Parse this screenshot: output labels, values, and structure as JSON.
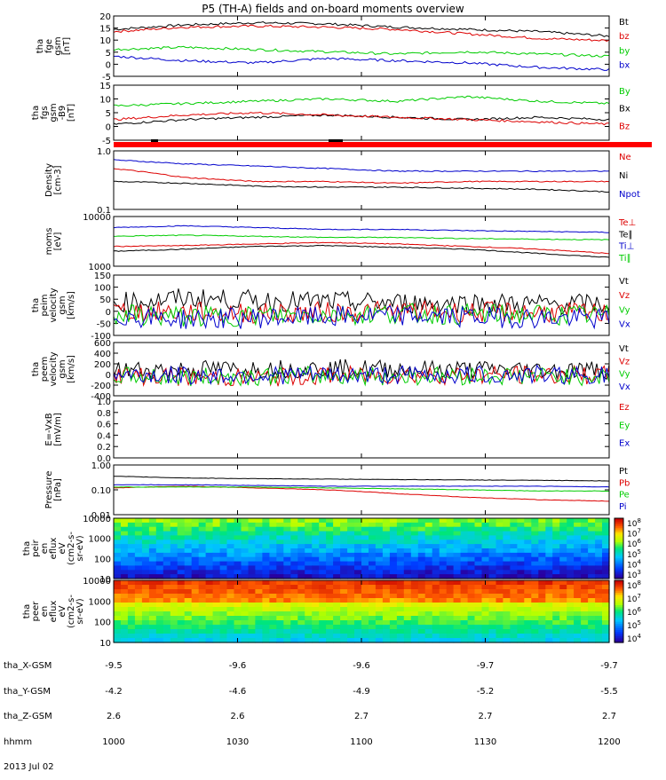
{
  "title": "P5 (TH-A) fields and on-board moments overview",
  "colors": {
    "black": "#000000",
    "red": "#dd0000",
    "green": "#00cc00",
    "blue": "#0000cc"
  },
  "chart_data": [
    {
      "type": "line",
      "ylabel": [
        "tha",
        "fge",
        "gsm",
        "[nT]"
      ],
      "yticks": [
        "20",
        "15",
        "10",
        "5",
        "0",
        "-5"
      ],
      "ylim": [
        -6,
        21
      ],
      "legend": [
        {
          "label": "Bt",
          "color": "black"
        },
        {
          "label": "bz",
          "color": "red"
        },
        {
          "label": "by",
          "color": "green"
        },
        {
          "label": "bx",
          "color": "blue"
        }
      ],
      "series": [
        {
          "name": "Bt",
          "values": [
            15,
            17,
            18,
            17.5,
            16,
            15,
            14,
            12
          ]
        },
        {
          "name": "bz",
          "values": [
            14,
            16,
            16.5,
            16,
            15,
            13,
            11,
            10
          ]
        },
        {
          "name": "by",
          "values": [
            6,
            7,
            6,
            5,
            4,
            5,
            4,
            3
          ]
        },
        {
          "name": "bx",
          "values": [
            3,
            1,
            0,
            2,
            1,
            0,
            -2,
            -3
          ]
        }
      ]
    },
    {
      "type": "line",
      "ylabel": [
        "tha",
        "fgs",
        "gsm",
        "-B9",
        "[nT]"
      ],
      "yticks": [
        "15",
        "10",
        "5",
        "0",
        "-5"
      ],
      "ylim": [
        -7,
        17
      ],
      "legend": [
        {
          "label": "By",
          "color": "green"
        },
        {
          "label": "Bx",
          "color": "black"
        },
        {
          "label": "Bz",
          "color": "red"
        }
      ],
      "series": [
        {
          "name": "By",
          "values": [
            8,
            9,
            10,
            11,
            10,
            12,
            10,
            9
          ]
        },
        {
          "name": "Bx",
          "values": [
            0,
            2,
            3,
            4,
            3,
            2,
            3,
            2
          ]
        },
        {
          "name": "Bz",
          "values": [
            2,
            4,
            5,
            4,
            3,
            2,
            1,
            0
          ]
        }
      ]
    },
    {
      "type": "line",
      "ylabel": [
        "Density",
        "[cm-3]"
      ],
      "yticks": [
        "1.0",
        "0.1"
      ],
      "ylim": [
        0.1,
        1.0
      ],
      "log": true,
      "legend": [
        {
          "label": "Ne",
          "color": "red"
        },
        {
          "label": "Ni",
          "color": "black"
        },
        {
          "label": "Npot",
          "color": "blue"
        }
      ],
      "series": [
        {
          "name": "Ne",
          "values": [
            0.5,
            0.35,
            0.3,
            0.3,
            0.28,
            0.3,
            0.3,
            0.3
          ]
        },
        {
          "name": "Ni",
          "values": [
            0.3,
            0.28,
            0.25,
            0.24,
            0.24,
            0.23,
            0.22,
            0.2
          ]
        },
        {
          "name": "Npot",
          "values": [
            0.7,
            0.6,
            0.55,
            0.5,
            0.45,
            0.45,
            0.45,
            0.45
          ]
        }
      ]
    },
    {
      "type": "line",
      "ylabel": [
        "moms",
        "[eV]"
      ],
      "yticks": [
        "10000",
        "1000"
      ],
      "ylim": [
        1000,
        10000
      ],
      "log": true,
      "legend": [
        {
          "label": "Te⊥",
          "color": "red"
        },
        {
          "label": "Te∥",
          "color": "black"
        },
        {
          "label": "Ti⊥",
          "color": "blue"
        },
        {
          "label": "Ti∥",
          "color": "green"
        }
      ],
      "series": [
        {
          "name": "Te⊥",
          "values": [
            2500,
            2600,
            2800,
            3000,
            2800,
            2500,
            2200,
            1800
          ]
        },
        {
          "name": "Te∥",
          "values": [
            2000,
            2200,
            2500,
            2600,
            2400,
            2200,
            1800,
            1500
          ]
        },
        {
          "name": "Ti⊥",
          "values": [
            6000,
            6500,
            6000,
            5500,
            5500,
            5200,
            5000,
            4800
          ]
        },
        {
          "name": "Ti∥",
          "values": [
            4000,
            4200,
            4000,
            3800,
            3800,
            3600,
            3500,
            3400
          ]
        }
      ]
    },
    {
      "type": "line",
      "ylabel": [
        "tha",
        "peim",
        "velocity",
        "gsm",
        "[km/s]"
      ],
      "yticks": [
        "150",
        "100",
        "50",
        "0",
        "-50",
        "-100"
      ],
      "ylim": [
        -100,
        160
      ],
      "legend": [
        {
          "label": "Vt",
          "color": "black"
        },
        {
          "label": "Vz",
          "color": "red"
        },
        {
          "label": "Vy",
          "color": "green"
        },
        {
          "label": "Vx",
          "color": "blue"
        }
      ],
      "series": [
        {
          "name": "Vt",
          "values": [
            40,
            60,
            50,
            45,
            40,
            40,
            35,
            35
          ]
        },
        {
          "name": "Vz",
          "values": [
            5,
            0,
            -5,
            0,
            5,
            0,
            0,
            -5
          ]
        },
        {
          "name": "Vy",
          "values": [
            -10,
            -20,
            -15,
            -10,
            -5,
            -10,
            -10,
            -15
          ]
        },
        {
          "name": "Vx",
          "values": [
            -15,
            -30,
            -25,
            -20,
            -15,
            -20,
            -25,
            -30
          ]
        }
      ]
    },
    {
      "type": "line",
      "ylabel": [
        "tha",
        "peem",
        "velocity",
        "gsm",
        "[km/s]"
      ],
      "yticks": [
        "600",
        "400",
        "200",
        "0",
        "-200",
        "-400"
      ],
      "ylim": [
        -420,
        610
      ],
      "legend": [
        {
          "label": "Vt",
          "color": "black"
        },
        {
          "label": "Vz",
          "color": "red"
        },
        {
          "label": "Vy",
          "color": "green"
        },
        {
          "label": "Vx",
          "color": "blue"
        }
      ],
      "series": [
        {
          "name": "Vt",
          "values": [
            70,
            90,
            100,
            110,
            100,
            90,
            85,
            80
          ]
        },
        {
          "name": "Vz",
          "values": [
            -20,
            -60,
            -80,
            -30,
            -20,
            -20,
            -20,
            -20
          ]
        },
        {
          "name": "Vy",
          "values": [
            -30,
            -70,
            -40,
            -30,
            -40,
            -30,
            -40,
            -40
          ]
        },
        {
          "name": "Vx",
          "values": [
            -10,
            -30,
            -20,
            -20,
            -20,
            -20,
            -10,
            -20
          ]
        }
      ]
    },
    {
      "type": "line",
      "ylabel": [
        "E=-VxB",
        "[mV/m]"
      ],
      "yticks": [
        "1.0",
        "0.8",
        "0.6",
        "0.4",
        "0.2",
        "0.0"
      ],
      "ylim": [
        0,
        1
      ],
      "legend": [
        {
          "label": "Ez",
          "color": "red"
        },
        {
          "label": "Ey",
          "color": "green"
        },
        {
          "label": "Ex",
          "color": "blue"
        }
      ],
      "series": []
    },
    {
      "type": "line",
      "ylabel": [
        "Pressure",
        "[nPa]"
      ],
      "yticks": [
        "1.00",
        "0.10",
        "0.01"
      ],
      "ylim": [
        0.01,
        1.0
      ],
      "log": true,
      "legend": [
        {
          "label": "Pt",
          "color": "black"
        },
        {
          "label": "Pb",
          "color": "red"
        },
        {
          "label": "Pe",
          "color": "green"
        },
        {
          "label": "Pi",
          "color": "blue"
        }
      ],
      "series": [
        {
          "name": "Pt",
          "values": [
            0.35,
            0.3,
            0.28,
            0.27,
            0.26,
            0.25,
            0.24,
            0.23
          ]
        },
        {
          "name": "Pb",
          "values": [
            0.12,
            0.14,
            0.12,
            0.1,
            0.07,
            0.05,
            0.04,
            0.035
          ]
        },
        {
          "name": "Pe",
          "values": [
            0.13,
            0.13,
            0.13,
            0.12,
            0.11,
            0.1,
            0.09,
            0.09
          ]
        },
        {
          "name": "Pi",
          "values": [
            0.16,
            0.16,
            0.15,
            0.14,
            0.14,
            0.14,
            0.14,
            0.13
          ]
        }
      ]
    },
    {
      "type": "heatmap",
      "ylabel": [
        "tha",
        "peir",
        "en",
        "eflux",
        "eV",
        "(cm2-s-",
        "sr-eV)"
      ],
      "yticks": [
        "10000",
        "1000",
        "100",
        "10"
      ],
      "ylim": [
        10,
        20000
      ],
      "log": true,
      "colorbar": {
        "min_exp": 3,
        "max_exp": 8,
        "ticks": [
          "10^8",
          "10^7",
          "10^6",
          "10^5",
          "10^4",
          "10^3"
        ]
      }
    },
    {
      "type": "heatmap",
      "ylabel": [
        "tha",
        "peer",
        "en",
        "eflux",
        "eV",
        "(cm2-s-",
        "sr-eV)"
      ],
      "yticks": [
        "10000",
        "1000",
        "100",
        "10"
      ],
      "ylim": [
        10,
        20000
      ],
      "log": true,
      "colorbar": {
        "min_exp": 4,
        "max_exp": 8,
        "ticks": [
          "10^8",
          "10^7",
          "10^6",
          "10^5",
          "10^4"
        ]
      }
    }
  ],
  "ephemeris": [
    {
      "label": "tha_X-GSM",
      "values": [
        "-9.5",
        "-9.6",
        "-9.6",
        "-9.7",
        "-9.7"
      ]
    },
    {
      "label": "tha_Y-GSM",
      "values": [
        "-4.2",
        "-4.6",
        "-4.9",
        "-5.2",
        "-5.5"
      ]
    },
    {
      "label": "tha_Z-GSM",
      "values": [
        "2.6",
        "2.6",
        "2.7",
        "2.7",
        "2.7"
      ]
    },
    {
      "label": "hhmm",
      "values": [
        "1000",
        "1030",
        "1100",
        "1130",
        "1200"
      ]
    }
  ],
  "date": "2013 Jul 02"
}
